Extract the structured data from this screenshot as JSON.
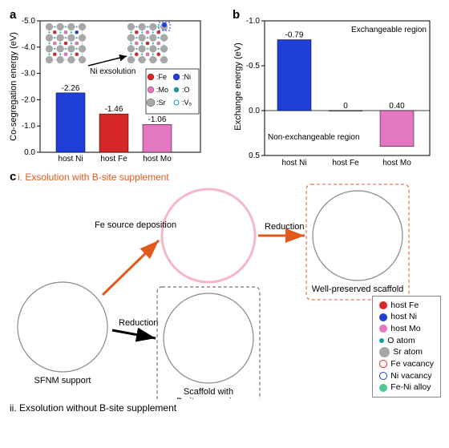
{
  "colors": {
    "fe": "#d62728",
    "ni": "#1f3fd6",
    "mo": "#e377c2",
    "o": "#17a2a8",
    "sr": "#a8a8a8",
    "vo": "#bfe8ff",
    "feni": "#4fc98f",
    "axis": "#333",
    "orange": "#e05a1b"
  },
  "panel_a": {
    "label": "a",
    "y_label": "Co-segregation energy (eV)",
    "y_ticks": [
      "-5.0",
      "-4.0",
      "-3.0",
      "-2.0",
      "-1.0",
      "0.0"
    ],
    "ylim": [
      0.0,
      -5.0
    ],
    "inset_arrow_label": "Ni exsolution",
    "bars": [
      {
        "cat": "host Ni",
        "val": -2.26,
        "color": "#1f3fd6",
        "label": "-2.26"
      },
      {
        "cat": "host Fe",
        "val": -1.46,
        "color": "#d62728",
        "label": "-1.46"
      },
      {
        "cat": "host Mo",
        "val": -1.06,
        "color": "#e377c2",
        "label": "-1.06"
      }
    ],
    "legend": [
      {
        "sym": "fe",
        "label": ":Fe"
      },
      {
        "sym": "ni",
        "label": ":Ni"
      },
      {
        "sym": "mo",
        "label": ":Mo"
      },
      {
        "sym": "o",
        "label": ":O"
      },
      {
        "sym": "sr",
        "label": ":Sr"
      },
      {
        "sym": "vo",
        "label": ":Vₒ"
      }
    ]
  },
  "panel_b": {
    "label": "b",
    "y_label": "Exchange energy (eV)",
    "y_ticks": [
      "-1.0",
      "-0.5",
      "0.0",
      "0.5"
    ],
    "ylim": [
      0.5,
      -1.0
    ],
    "region_top": "Exchangeable region",
    "region_bot": "Non-exchangeable region",
    "bars": [
      {
        "cat": "host Ni",
        "val": -0.79,
        "color": "#1f3fd6",
        "label": "-0.79"
      },
      {
        "cat": "host Fe",
        "val": 0,
        "color": "#d62728",
        "label": "0"
      },
      {
        "cat": "host Mo",
        "val": 0.4,
        "color": "#e377c2",
        "label": "0.40"
      }
    ]
  },
  "panel_c": {
    "label": "c",
    "title_i": "i. Exsolution with B-site supplement",
    "title_ii": "ii. Exsolution without B-site supplement",
    "labels": {
      "sfnm": "SFNM support",
      "scaffold_vac": "Scaffold with\nB-site vacancies",
      "scaffold_pres": "Well-preserved scaffold",
      "fe_dep": "Fe source deposition",
      "red1": "Reduction",
      "red2": "Reduction"
    },
    "legend": [
      {
        "type": "solid",
        "color": "#d62728",
        "label": "host Fe"
      },
      {
        "type": "solid",
        "color": "#1f3fd6",
        "label": "host Ni"
      },
      {
        "type": "solid",
        "color": "#e377c2",
        "label": "host Mo"
      },
      {
        "type": "solid",
        "color": "#17a2a8",
        "label": "O atom",
        "size": "small"
      },
      {
        "type": "solid",
        "color": "#a8a8a8",
        "label": "Sr atom",
        "size": "big"
      },
      {
        "type": "ring",
        "color": "#d62728",
        "label": "Fe vacancy"
      },
      {
        "type": "ring",
        "color": "#1f3fd6",
        "label": "Ni vacancy"
      },
      {
        "type": "solid",
        "color": "#4fc98f",
        "label": "Fe-Ni alloy"
      }
    ],
    "circle_radius": 56
  }
}
